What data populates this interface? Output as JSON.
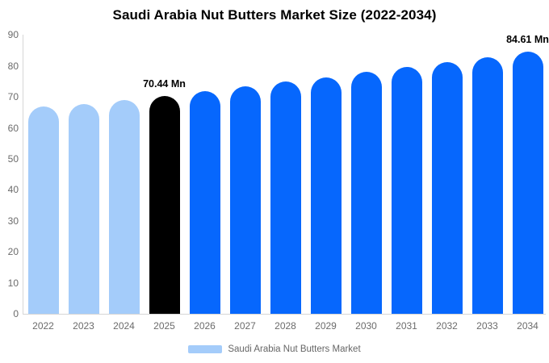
{
  "chart_data": {
    "type": "bar",
    "title": "Saudi Arabia Nut Butters Market Size (2022-2034)",
    "categories": [
      "2022",
      "2023",
      "2024",
      "2025",
      "2026",
      "2027",
      "2028",
      "2029",
      "2030",
      "2031",
      "2032",
      "2033",
      "2034"
    ],
    "values": [
      66.8,
      67.7,
      68.9,
      70.44,
      71.9,
      73.4,
      74.9,
      76.4,
      78.0,
      79.6,
      81.2,
      82.9,
      84.61
    ],
    "unit": "Mn",
    "ylim": [
      0,
      90
    ],
    "yticks": [
      0,
      10,
      20,
      30,
      40,
      50,
      60,
      70,
      80,
      90
    ],
    "grid": false,
    "colors": [
      "#A4CCFA",
      "#A4CCFA",
      "#A4CCFA",
      "#000000",
      "#0667FD",
      "#0667FD",
      "#0667FD",
      "#0667FD",
      "#0667FD",
      "#0667FD",
      "#0667FD",
      "#0667FD",
      "#0667FD"
    ],
    "color_roles": {
      "historical": "#A4CCFA",
      "base_year": "#000000",
      "forecast": "#0667FD"
    },
    "data_labels": [
      {
        "category": "2025",
        "text": "70.44 Mn"
      },
      {
        "category": "2034",
        "text": "84.61 Mn"
      }
    ],
    "legend": {
      "position": "bottom",
      "items": [
        {
          "label": "Saudi Arabia Nut Butters Market",
          "swatch_color": "#A4CCFA"
        }
      ]
    }
  }
}
